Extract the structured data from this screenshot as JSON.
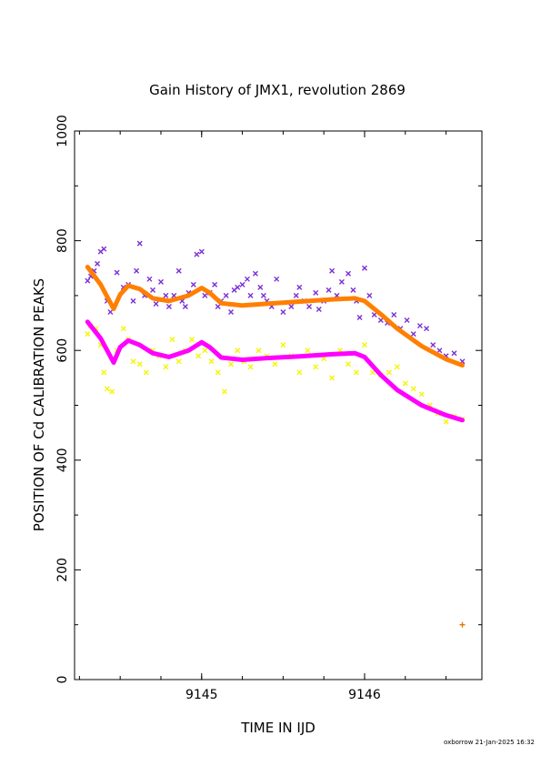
{
  "chart_data": {
    "type": "scatter",
    "title": "Gain History of JMX1, revolution 2869",
    "xlabel": "TIME IN IJD",
    "ylabel": "POSITION OF Cd CALIBRATION PEAKS",
    "xlim": [
      9144.22,
      9146.72
    ],
    "ylim": [
      0,
      1000
    ],
    "x_ticks": [
      9145,
      9146
    ],
    "x_tick_labels": [
      "9145",
      "9146"
    ],
    "y_ticks": [
      0,
      200,
      400,
      600,
      800,
      1000
    ],
    "y_tick_labels": [
      "0",
      "200",
      "400",
      "600",
      "800",
      "1000"
    ],
    "grid": false,
    "footer": "oxborrow 21-Jan-2025 16:32",
    "series": [
      {
        "role": "upper-peak-fit",
        "color": "#ff7f00",
        "style": "thick-line",
        "x": [
          9144.3,
          9144.38,
          9144.46,
          9144.5,
          9144.55,
          9144.62,
          9144.7,
          9144.8,
          9144.92,
          9145.0,
          9145.05,
          9145.12,
          9145.25,
          9145.4,
          9145.6,
          9145.8,
          9145.94,
          9146.0,
          9146.1,
          9146.2,
          9146.35,
          9146.5,
          9146.6
        ],
        "y": [
          752,
          720,
          676,
          702,
          718,
          712,
          695,
          690,
          700,
          714,
          705,
          686,
          682,
          685,
          689,
          693,
          695,
          690,
          666,
          640,
          608,
          584,
          573
        ]
      },
      {
        "role": "lower-peak-fit",
        "color": "#ff00ff",
        "style": "thick-line",
        "x": [
          9144.3,
          9144.38,
          9144.46,
          9144.5,
          9144.55,
          9144.62,
          9144.7,
          9144.8,
          9144.92,
          9145.0,
          9145.05,
          9145.12,
          9145.25,
          9145.4,
          9145.6,
          9145.8,
          9145.94,
          9146.0,
          9146.1,
          9146.2,
          9146.35,
          9146.5,
          9146.6
        ],
        "y": [
          652,
          622,
          578,
          606,
          618,
          610,
          595,
          588,
          600,
          615,
          606,
          587,
          583,
          586,
          589,
          593,
          595,
          588,
          555,
          528,
          500,
          482,
          473
        ]
      },
      {
        "role": "upper-peak-points",
        "color": "#7b2fd6",
        "style": "cross",
        "x": [
          9144.3,
          9144.32,
          9144.34,
          9144.36,
          9144.38,
          9144.4,
          9144.42,
          9144.44,
          9144.48,
          9144.52,
          9144.55,
          9144.58,
          9144.6,
          9144.62,
          9144.65,
          9144.68,
          9144.7,
          9144.72,
          9144.75,
          9144.78,
          9144.8,
          9144.83,
          9144.86,
          9144.88,
          9144.9,
          9144.92,
          9144.95,
          9144.97,
          9145.0,
          9145.02,
          9145.05,
          9145.08,
          9145.1,
          9145.12,
          9145.15,
          9145.18,
          9145.2,
          9145.22,
          9145.25,
          9145.28,
          9145.3,
          9145.33,
          9145.36,
          9145.38,
          9145.4,
          9145.43,
          9145.46,
          9145.5,
          9145.55,
          9145.58,
          9145.6,
          9145.63,
          9145.66,
          9145.7,
          9145.72,
          9145.75,
          9145.78,
          9145.8,
          9145.83,
          9145.86,
          9145.9,
          9145.93,
          9145.95,
          9145.97,
          9146.0,
          9146.03,
          9146.06,
          9146.1,
          9146.14,
          9146.18,
          9146.22,
          9146.26,
          9146.3,
          9146.34,
          9146.38,
          9146.42,
          9146.46,
          9146.5,
          9146.55,
          9146.6
        ],
        "y": [
          727,
          735,
          745,
          758,
          780,
          785,
          690,
          670,
          742,
          715,
          720,
          690,
          745,
          795,
          700,
          730,
          710,
          685,
          725,
          700,
          680,
          700,
          745,
          690,
          680,
          705,
          720,
          775,
          780,
          700,
          705,
          720,
          680,
          690,
          700,
          670,
          710,
          715,
          720,
          730,
          700,
          740,
          715,
          700,
          690,
          680,
          730,
          670,
          680,
          700,
          715,
          690,
          680,
          705,
          675,
          690,
          710,
          745,
          700,
          725,
          740,
          710,
          690,
          660,
          750,
          700,
          665,
          655,
          650,
          665,
          640,
          655,
          630,
          645,
          640,
          610,
          600,
          590,
          595,
          580
        ]
      },
      {
        "role": "lower-peak-points",
        "color": "#f5f500",
        "style": "cross",
        "x": [
          9144.3,
          9144.32,
          9144.35,
          9144.38,
          9144.4,
          9144.42,
          9144.45,
          9144.48,
          9144.52,
          9144.55,
          9144.58,
          9144.62,
          9144.66,
          9144.7,
          9144.74,
          9144.78,
          9144.82,
          9144.86,
          9144.9,
          9144.94,
          9144.98,
          9145.02,
          9145.06,
          9145.1,
          9145.14,
          9145.18,
          9145.22,
          9145.26,
          9145.3,
          9145.35,
          9145.4,
          9145.45,
          9145.5,
          9145.55,
          9145.6,
          9145.65,
          9145.7,
          9145.75,
          9145.8,
          9145.85,
          9145.9,
          9145.95,
          9146.0,
          9146.05,
          9146.1,
          9146.15,
          9146.2,
          9146.25,
          9146.3,
          9146.35,
          9146.4,
          9146.45,
          9146.5,
          9146.55,
          9146.6
        ],
        "y": [
          630,
          645,
          640,
          610,
          560,
          530,
          525,
          600,
          640,
          620,
          580,
          575,
          560,
          600,
          590,
          570,
          620,
          580,
          600,
          620,
          590,
          600,
          580,
          560,
          525,
          575,
          600,
          580,
          570,
          600,
          590,
          575,
          610,
          590,
          560,
          600,
          570,
          585,
          550,
          600,
          575,
          560,
          610,
          560,
          555,
          560,
          570,
          540,
          530,
          520,
          500,
          485,
          470,
          480,
          475
        ]
      },
      {
        "role": "outlier",
        "color": "#e07b00",
        "style": "plus",
        "x": [
          9146.6
        ],
        "y": [
          100
        ]
      }
    ]
  }
}
